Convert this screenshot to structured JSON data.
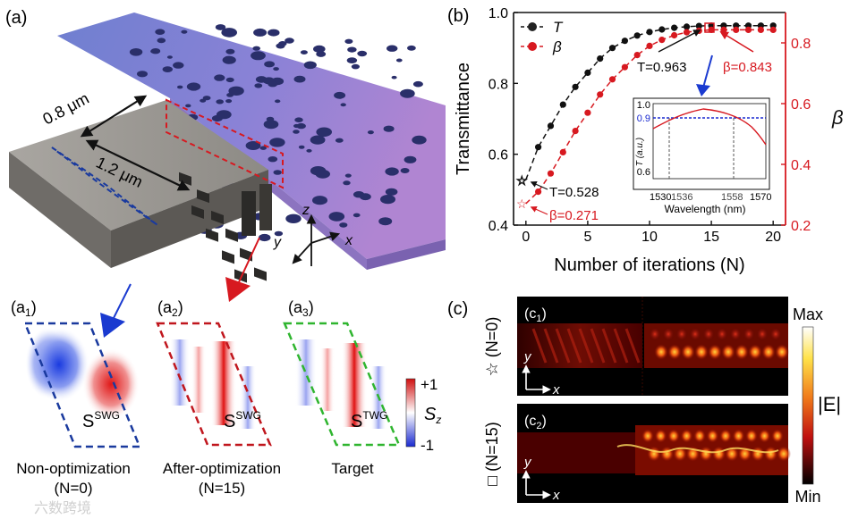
{
  "panel_a": {
    "label": "(a)",
    "dim_gap": "0.8 μm",
    "dim_width": "1.2 μm",
    "axis_z": "z",
    "axis_y": "y",
    "axis_x": "x"
  },
  "panel_a_sub": [
    {
      "label_main": "(a",
      "label_sub": "1",
      "label_close": ")",
      "s_main": "S",
      "s_sup": "SWG",
      "caption_1": "Non-optimization",
      "caption_2": "(N=0)",
      "dash_color": "#1a3a9e"
    },
    {
      "label_main": "(a",
      "label_sub": "2",
      "label_close": ")",
      "s_main": "S",
      "s_sup": "SWG",
      "caption_1": "After-optimization",
      "caption_2": "(N=15)",
      "dash_color": "#c0161d"
    },
    {
      "label_main": "(a",
      "label_sub": "3",
      "label_close": ")",
      "s_main": "S",
      "s_sup": "TWG",
      "caption_1": "Target",
      "caption_2": "",
      "dash_color": "#2fb52f"
    }
  ],
  "colorbar_sz": {
    "top": "+1",
    "bottom": "-1",
    "label_main": "S",
    "label_sub": "z"
  },
  "panel_b": {
    "label": "(b)",
    "legend_T": "T",
    "legend_beta": "β",
    "ann_T15": "T=0.963",
    "ann_beta15": "β=0.843",
    "ann_T0": "T=0.528",
    "ann_beta0": "β=0.271",
    "inset": {
      "ylabel": "T (a.u.)",
      "xlabel": "Wavelength (nm)",
      "yticks": [
        "1.0",
        "0.9",
        "0.6"
      ],
      "xticks": [
        "1530",
        "1536",
        "1558",
        "1570"
      ]
    }
  },
  "chart_data": {
    "type": "line",
    "xlabel": "Number of iterations (N)",
    "ylabel": "Transmittance",
    "y2label": "β",
    "xlim": [
      -1,
      21
    ],
    "ylim": [
      0.4,
      1.0
    ],
    "y2lim": [
      0.2,
      0.9
    ],
    "xticks": [
      "0",
      "5",
      "10",
      "15",
      "20"
    ],
    "yticks": [
      "0.4",
      "0.6",
      "0.8",
      "1.0"
    ],
    "y2ticks": [
      "0.2",
      "0.4",
      "0.6",
      "0.8"
    ],
    "x": [
      0,
      1,
      2,
      3,
      4,
      5,
      6,
      7,
      8,
      9,
      10,
      11,
      12,
      13,
      14,
      15,
      16,
      17,
      18,
      19,
      20
    ],
    "series": [
      {
        "name": "T",
        "axis": "left",
        "color": "#111111",
        "values": [
          0.528,
          0.62,
          0.68,
          0.74,
          0.79,
          0.83,
          0.87,
          0.9,
          0.92,
          0.935,
          0.945,
          0.952,
          0.957,
          0.96,
          0.962,
          0.963,
          0.963,
          0.963,
          0.963,
          0.963,
          0.963
        ]
      },
      {
        "name": "β",
        "axis": "right",
        "color": "#d71920",
        "values": [
          0.271,
          0.31,
          0.37,
          0.44,
          0.51,
          0.57,
          0.63,
          0.68,
          0.72,
          0.76,
          0.79,
          0.81,
          0.825,
          0.835,
          0.84,
          0.843,
          0.843,
          0.843,
          0.843,
          0.843,
          0.843
        ]
      }
    ]
  },
  "panel_c": {
    "label": "(c)",
    "maps": [
      {
        "label_main": "(c",
        "label_sub": "1",
        "label_close": ")",
        "side_label": "☆ (N=0)",
        "axis_y": "y",
        "axis_x": "x"
      },
      {
        "label_main": "(c",
        "label_sub": "2",
        "label_close": ")",
        "side_label": "□ (N=15)",
        "axis_y": "y",
        "axis_x": "x"
      }
    ],
    "colorbar": {
      "top": "Max",
      "bottom": "Min",
      "label": "|E|"
    }
  },
  "watermark": "六数跨境"
}
